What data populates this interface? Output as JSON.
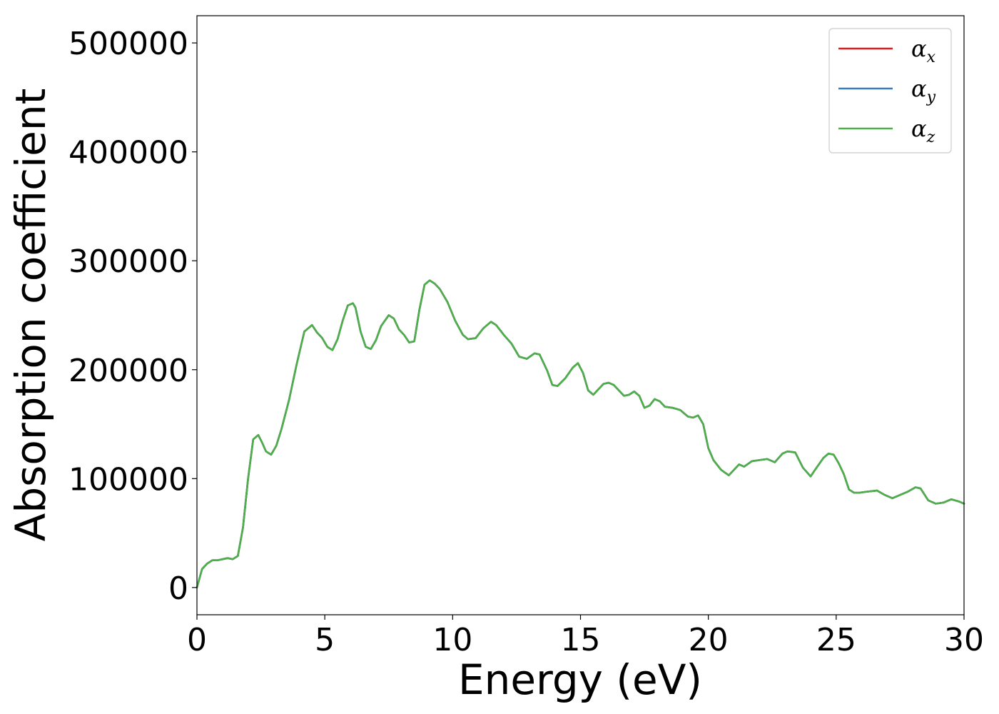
{
  "chart_data": {
    "type": "line",
    "title": "",
    "xlabel": "Energy (eV)",
    "ylabel": "Absorption coefficient",
    "xlim": [
      0,
      30
    ],
    "ylim": [
      -25000,
      525000
    ],
    "xticks": [
      0,
      5,
      10,
      15,
      20,
      25,
      30
    ],
    "xtick_labels": [
      "0",
      "5",
      "10",
      "15",
      "20",
      "25",
      "30"
    ],
    "yticks": [
      0,
      100000,
      200000,
      300000,
      400000,
      500000
    ],
    "ytick_labels": [
      "0",
      "100000",
      "200000",
      "300000",
      "400000",
      "500000"
    ],
    "grid": false,
    "legend_placement": "top-right",
    "x": [
      0,
      0.2,
      0.4,
      0.6,
      0.8,
      1.0,
      1.2,
      1.4,
      1.6,
      1.8,
      2.0,
      2.2,
      2.4,
      2.55,
      2.7,
      2.9,
      3.1,
      3.3,
      3.6,
      3.9,
      4.2,
      4.5,
      4.7,
      4.9,
      5.1,
      5.3,
      5.5,
      5.7,
      5.9,
      6.1,
      6.2,
      6.4,
      6.6,
      6.8,
      7.0,
      7.2,
      7.5,
      7.7,
      7.9,
      8.1,
      8.3,
      8.5,
      8.7,
      8.9,
      9.1,
      9.3,
      9.5,
      9.8,
      10.1,
      10.4,
      10.6,
      10.9,
      11.2,
      11.5,
      11.7,
      12.0,
      12.3,
      12.6,
      12.9,
      13.2,
      13.4,
      13.7,
      13.9,
      14.1,
      14.4,
      14.7,
      14.9,
      15.1,
      15.3,
      15.5,
      15.7,
      15.9,
      16.1,
      16.3,
      16.5,
      16.7,
      16.9,
      17.1,
      17.3,
      17.5,
      17.7,
      17.9,
      18.1,
      18.3,
      18.6,
      18.9,
      19.2,
      19.4,
      19.6,
      19.8,
      20.0,
      20.2,
      20.5,
      20.8,
      21.0,
      21.2,
      21.4,
      21.7,
      22.0,
      22.3,
      22.6,
      22.9,
      23.1,
      23.4,
      23.7,
      24.0,
      24.2,
      24.5,
      24.7,
      24.9,
      25.1,
      25.3,
      25.5,
      25.7,
      25.9,
      26.2,
      26.6,
      26.9,
      27.2,
      27.5,
      27.8,
      28.1,
      28.3,
      28.6,
      28.9,
      29.2,
      29.5,
      29.8,
      30.0
    ],
    "series": [
      {
        "name": "α_x",
        "color": "#e41a1c",
        "values": [
          0,
          17000,
          22000,
          25000,
          25000,
          26000,
          27000,
          26000,
          29000,
          55000,
          100000,
          136000,
          140000,
          133000,
          125000,
          122000,
          130000,
          145000,
          172000,
          205000,
          235000,
          241000,
          234000,
          229000,
          221000,
          218000,
          228000,
          245000,
          259000,
          261000,
          257000,
          235000,
          221000,
          219000,
          227000,
          240000,
          250000,
          247000,
          237000,
          232000,
          225000,
          226000,
          255000,
          278000,
          282000,
          279000,
          274000,
          262000,
          245000,
          232000,
          228000,
          229000,
          238000,
          244000,
          241000,
          232000,
          224000,
          212000,
          210000,
          215000,
          214000,
          199000,
          186000,
          185000,
          192000,
          202000,
          206000,
          197000,
          181000,
          177000,
          182000,
          187000,
          188000,
          186000,
          181000,
          176000,
          177000,
          180000,
          176000,
          165000,
          167000,
          173000,
          171000,
          166000,
          165000,
          163000,
          157000,
          156000,
          158000,
          150000,
          128000,
          117000,
          108000,
          103000,
          108000,
          113000,
          111000,
          116000,
          117000,
          118000,
          115000,
          123000,
          125000,
          124000,
          110000,
          102000,
          109000,
          119000,
          123000,
          122000,
          114000,
          104000,
          90000,
          87000,
          87000,
          88000,
          89000,
          85000,
          82000,
          85000,
          88000,
          92000,
          91000,
          80000,
          77000,
          78000,
          81000,
          79000,
          77000
        ]
      },
      {
        "name": "α_y",
        "color": "#377eb8",
        "values": [
          0,
          17000,
          22000,
          25000,
          25000,
          26000,
          27000,
          26000,
          29000,
          55000,
          100000,
          136000,
          140000,
          133000,
          125000,
          122000,
          130000,
          145000,
          172000,
          205000,
          235000,
          241000,
          234000,
          229000,
          221000,
          218000,
          228000,
          245000,
          259000,
          261000,
          257000,
          235000,
          221000,
          219000,
          227000,
          240000,
          250000,
          247000,
          237000,
          232000,
          225000,
          226000,
          255000,
          278000,
          282000,
          279000,
          274000,
          262000,
          245000,
          232000,
          228000,
          229000,
          238000,
          244000,
          241000,
          232000,
          224000,
          212000,
          210000,
          215000,
          214000,
          199000,
          186000,
          185000,
          192000,
          202000,
          206000,
          197000,
          181000,
          177000,
          182000,
          187000,
          188000,
          186000,
          181000,
          176000,
          177000,
          180000,
          176000,
          165000,
          167000,
          173000,
          171000,
          166000,
          165000,
          163000,
          157000,
          156000,
          158000,
          150000,
          128000,
          117000,
          108000,
          103000,
          108000,
          113000,
          111000,
          116000,
          117000,
          118000,
          115000,
          123000,
          125000,
          124000,
          110000,
          102000,
          109000,
          119000,
          123000,
          122000,
          114000,
          104000,
          90000,
          87000,
          87000,
          88000,
          89000,
          85000,
          82000,
          85000,
          88000,
          92000,
          91000,
          80000,
          77000,
          78000,
          81000,
          79000,
          77000
        ]
      },
      {
        "name": "α_z",
        "color": "#4daf4a",
        "values": [
          0,
          17000,
          22000,
          25000,
          25000,
          26000,
          27000,
          26000,
          29000,
          55000,
          100000,
          136000,
          140000,
          133000,
          125000,
          122000,
          130000,
          145000,
          172000,
          205000,
          235000,
          241000,
          234000,
          229000,
          221000,
          218000,
          228000,
          245000,
          259000,
          261000,
          257000,
          235000,
          221000,
          219000,
          227000,
          240000,
          250000,
          247000,
          237000,
          232000,
          225000,
          226000,
          255000,
          278000,
          282000,
          279000,
          274000,
          262000,
          245000,
          232000,
          228000,
          229000,
          238000,
          244000,
          241000,
          232000,
          224000,
          212000,
          210000,
          215000,
          214000,
          199000,
          186000,
          185000,
          192000,
          202000,
          206000,
          197000,
          181000,
          177000,
          182000,
          187000,
          188000,
          186000,
          181000,
          176000,
          177000,
          180000,
          176000,
          165000,
          167000,
          173000,
          171000,
          166000,
          165000,
          163000,
          157000,
          156000,
          158000,
          150000,
          128000,
          117000,
          108000,
          103000,
          108000,
          113000,
          111000,
          116000,
          117000,
          118000,
          115000,
          123000,
          125000,
          124000,
          110000,
          102000,
          109000,
          119000,
          123000,
          122000,
          114000,
          104000,
          90000,
          87000,
          87000,
          88000,
          89000,
          85000,
          82000,
          85000,
          88000,
          92000,
          91000,
          80000,
          77000,
          78000,
          81000,
          79000,
          77000
        ]
      }
    ],
    "legend": [
      {
        "symbol": "α",
        "sub": "x",
        "color": "#e41a1c"
      },
      {
        "symbol": "α",
        "sub": "y",
        "color": "#377eb8"
      },
      {
        "symbol": "α",
        "sub": "z",
        "color": "#4daf4a"
      }
    ]
  }
}
